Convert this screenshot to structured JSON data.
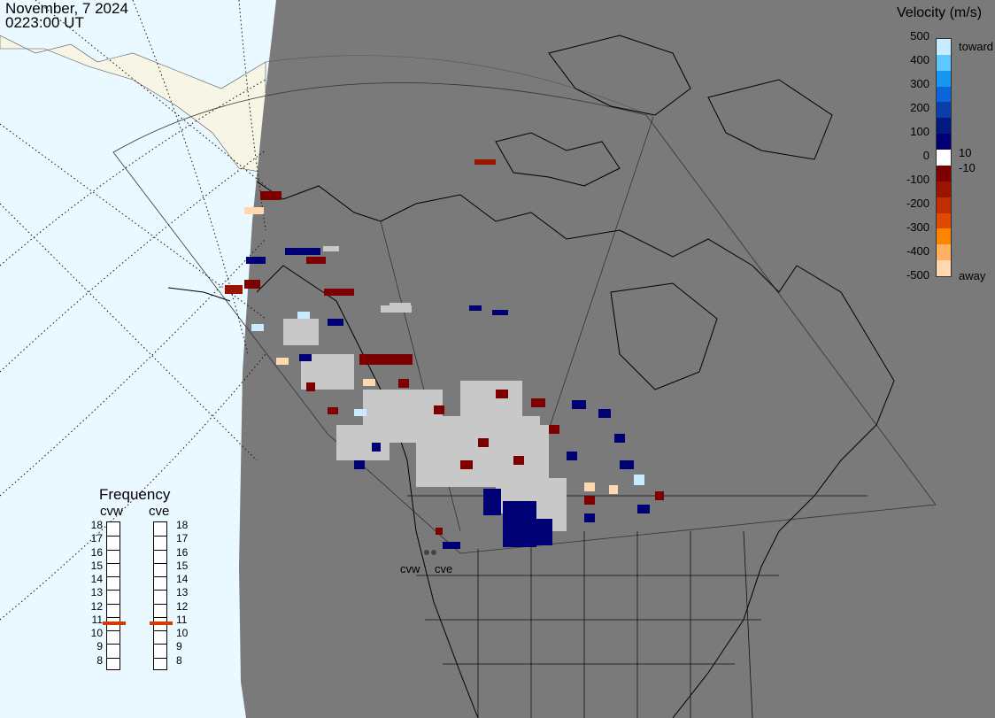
{
  "header": {
    "date": "November, 7 2024",
    "time": "0223:00 UT"
  },
  "colorbar": {
    "title": "Velocity (m/s)",
    "ticks": [
      "500",
      "400",
      "300",
      "200",
      "100",
      "0",
      "-100",
      "-200",
      "-300",
      "-400",
      "-500"
    ],
    "extra_ticks": [
      "10",
      "-10"
    ],
    "toward_label": "toward",
    "away_label": "away",
    "toward_colors": [
      "#c8ecff",
      "#5fc6ff",
      "#1796f0",
      "#0a66d8",
      "#0a3fa8",
      "#001a80",
      "#000075"
    ],
    "away_colors": [
      "#7d0000",
      "#9a1500",
      "#c02e00",
      "#e04a00",
      "#ff8400",
      "#ffb060",
      "#ffd8b0"
    ]
  },
  "frequency": {
    "title": "Frequency",
    "radars": [
      "cvw",
      "cve"
    ],
    "scale": [
      "18",
      "17",
      "16",
      "15",
      "14",
      "13",
      "12",
      "11",
      "10",
      "9",
      "8"
    ],
    "current_mhz": [
      11,
      11
    ]
  },
  "map": {
    "radar_labels": [
      "cvw",
      "cve"
    ],
    "colors": {
      "ocean": "#eaf8ff",
      "land": "#f7f5e6",
      "night": "#7a7a7a",
      "ground_scatter": "#c8c8c8"
    }
  }
}
